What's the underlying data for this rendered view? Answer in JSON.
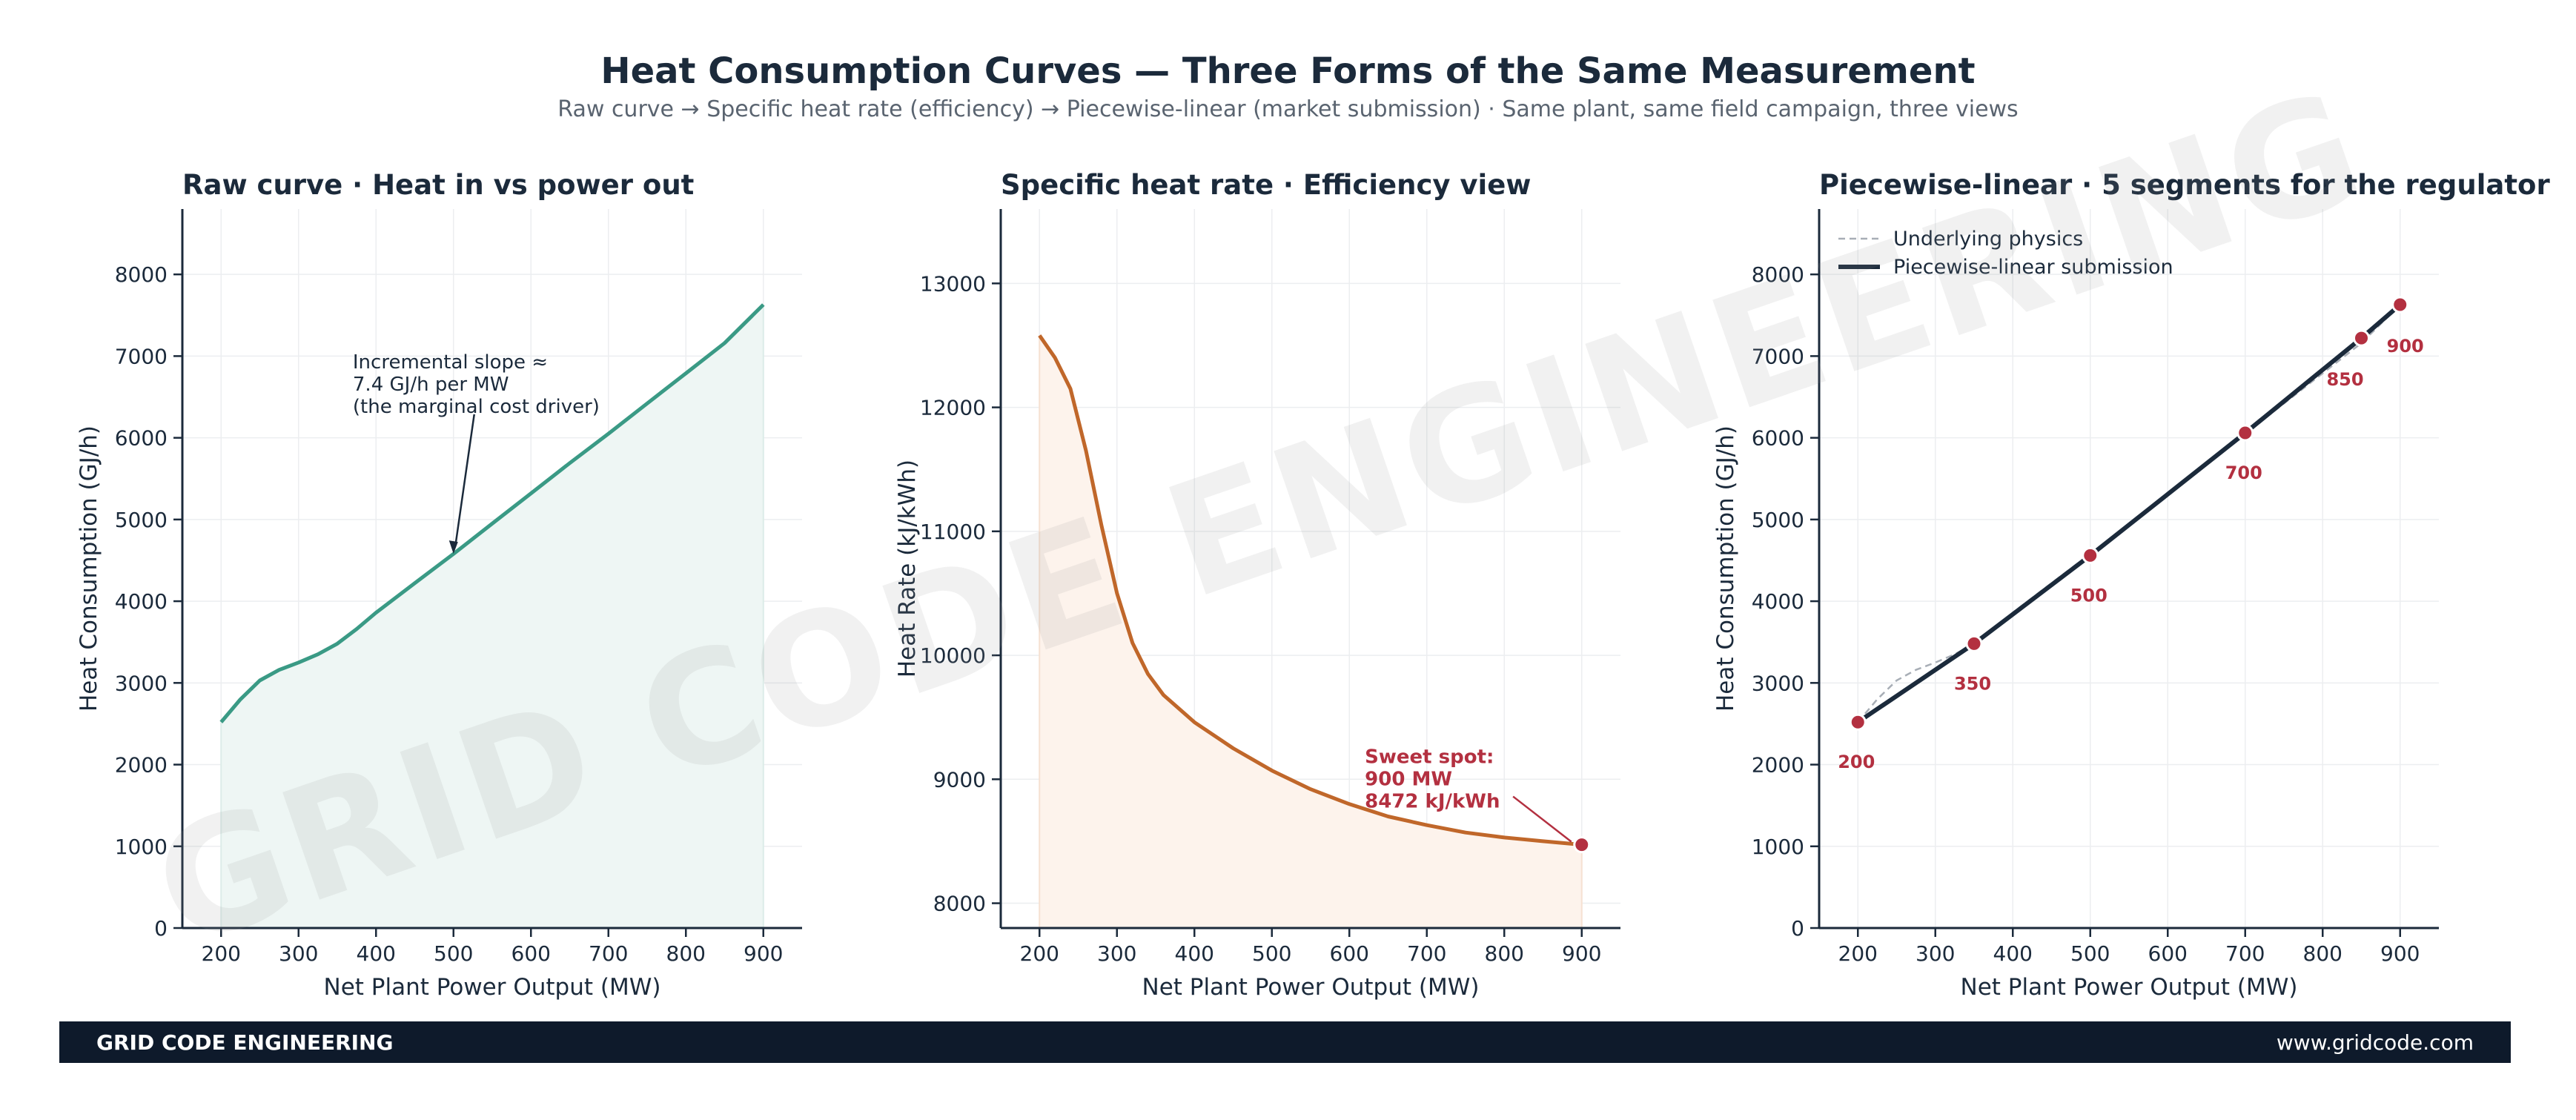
{
  "page": {
    "title": "Heat Consumption Curves — Three Forms of the Same Measurement",
    "subtitle": "Raw curve  →  Specific heat rate (efficiency)  →  Piecewise-linear (market submission)  ·  Same plant, same field campaign, three views",
    "watermark": "GRID CODE ENGINEERING",
    "footer_brand": "GRID CODE ENGINEERING",
    "footer_url": "www.gridcode.com"
  },
  "colors": {
    "raw": "#3a9a85",
    "raw_fill": "#eef6f4",
    "rate": "#c0672a",
    "rate_fill": "#fdf3ec",
    "pwl": "#1b2a3b",
    "marker": "#b33040",
    "physics": "#a8aeb6",
    "axis": "#1b2a3b",
    "grid": "#eceef0"
  },
  "chart_data": [
    {
      "type": "area",
      "title": "Raw curve  ·  Heat in vs power out",
      "xlabel": "Net Plant Power Output  (MW)",
      "ylabel": "Heat Consumption  (GJ/h)",
      "xlim": [
        150,
        950
      ],
      "ylim": [
        0,
        8800
      ],
      "xticks": [
        200,
        300,
        400,
        500,
        600,
        700,
        800,
        900
      ],
      "yticks": [
        0,
        1000,
        2000,
        3000,
        4000,
        5000,
        6000,
        7000,
        8000
      ],
      "grid": true,
      "series": [
        {
          "x": [
            200,
            225,
            250,
            275,
            300,
            325,
            350,
            375,
            400,
            450,
            500,
            550,
            600,
            650,
            700,
            750,
            800,
            850,
            900
          ],
          "values": [
            2520,
            2800,
            3030,
            3160,
            3250,
            3350,
            3480,
            3660,
            3860,
            4220,
            4580,
            4950,
            5320,
            5690,
            6050,
            6420,
            6790,
            7160,
            7630
          ]
        }
      ],
      "annotation": {
        "lines": [
          "Incremental slope ≈",
          "7.4 GJ/h per MW",
          "(the marginal cost driver)"
        ],
        "x": 500,
        "y": 4580
      }
    },
    {
      "type": "area",
      "title": "Specific heat rate  ·  Efficiency view",
      "xlabel": "Net Plant Power Output  (MW)",
      "ylabel": "Heat Rate  (kJ/kWh)",
      "xlim": [
        150,
        950
      ],
      "ylim": [
        7800,
        13600
      ],
      "xticks": [
        200,
        300,
        400,
        500,
        600,
        700,
        800,
        900
      ],
      "yticks": [
        8000,
        9000,
        10000,
        11000,
        12000,
        13000
      ],
      "grid": true,
      "series": [
        {
          "x": [
            200,
            220,
            240,
            260,
            280,
            300,
            320,
            340,
            360,
            400,
            450,
            500,
            550,
            600,
            650,
            700,
            750,
            800,
            850,
            900
          ],
          "values": [
            12580,
            12400,
            12150,
            11650,
            11050,
            10500,
            10100,
            9850,
            9680,
            9460,
            9250,
            9070,
            8920,
            8800,
            8700,
            8630,
            8570,
            8530,
            8500,
            8472
          ]
        }
      ],
      "annotation": {
        "lines": [
          "Sweet spot:",
          "900 MW",
          "8472 kJ/kWh"
        ],
        "x": 900,
        "y": 8472
      }
    },
    {
      "type": "line",
      "title": "Piecewise-linear  ·  5 segments for the regulator",
      "xlabel": "Net Plant Power Output  (MW)",
      "ylabel": "Heat Consumption  (GJ/h)",
      "xlim": [
        150,
        950
      ],
      "ylim": [
        0,
        8800
      ],
      "xticks": [
        200,
        300,
        400,
        500,
        600,
        700,
        800,
        900
      ],
      "yticks": [
        0,
        1000,
        2000,
        3000,
        4000,
        5000,
        6000,
        7000,
        8000
      ],
      "grid": true,
      "legend": "top-left",
      "series": [
        {
          "name": "Underlying physics",
          "x": [
            200,
            225,
            250,
            275,
            300,
            325,
            350,
            375,
            400,
            450,
            500,
            550,
            600,
            650,
            700,
            750,
            800,
            850,
            900
          ],
          "values": [
            2520,
            2800,
            3030,
            3160,
            3250,
            3350,
            3480,
            3660,
            3860,
            4220,
            4580,
            4950,
            5320,
            5690,
            6050,
            6420,
            6790,
            7160,
            7630
          ]
        },
        {
          "name": "Piecewise-linear submission",
          "x": [
            200,
            350,
            500,
            700,
            850,
            900
          ],
          "values": [
            2520,
            3480,
            4560,
            6060,
            7220,
            7630
          ]
        }
      ],
      "point_labels": [
        "200",
        "350",
        "500",
        "700",
        "850",
        "900"
      ]
    }
  ]
}
